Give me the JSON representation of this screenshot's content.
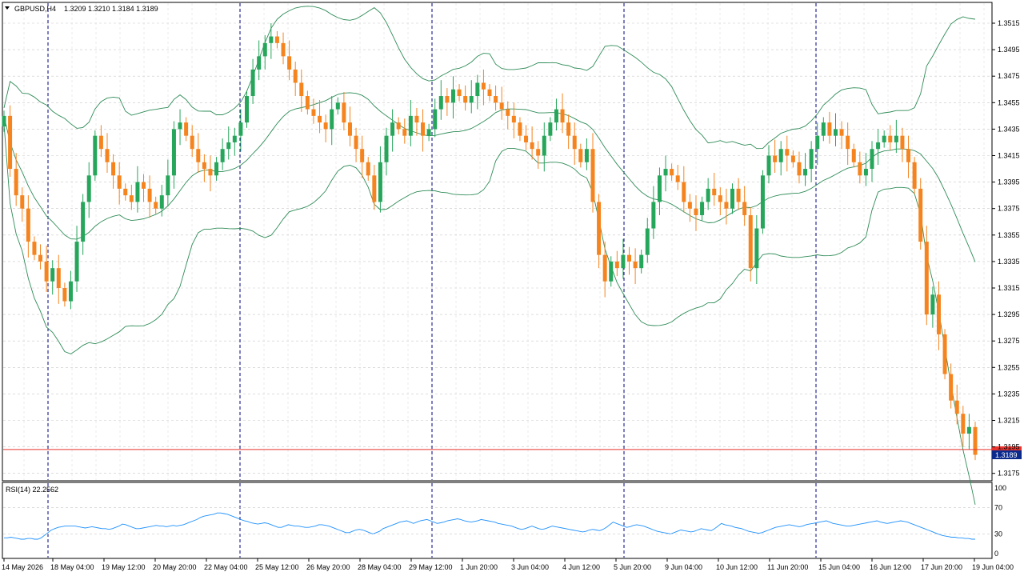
{
  "header": {
    "symbol_label": "GBPUSD,H4",
    "ohlc_label": "1.3209 1.3210 1.3184 1.3189"
  },
  "price_axis": {
    "labels": [
      "1.3515",
      "1.3495",
      "1.3475",
      "1.3455",
      "1.3435",
      "1.3415",
      "1.3395",
      "1.3375",
      "1.3355",
      "1.3335",
      "1.3315",
      "1.3295",
      "1.3275",
      "1.3255",
      "1.3235",
      "1.3215",
      "1.3195",
      "1.3175"
    ]
  },
  "current_price": {
    "label": "1.3189",
    "value": 1.3189,
    "bid_line_value": 1.3193
  },
  "rsi": {
    "label": "RSI(14) 22.2562",
    "levels": [
      "100",
      "70",
      "30",
      "0"
    ],
    "values": [
      24,
      24,
      25,
      24,
      23,
      22,
      22,
      23,
      23,
      22,
      22,
      24,
      28,
      32,
      36,
      38,
      40,
      41,
      42,
      42,
      42,
      42,
      41,
      40,
      39,
      40,
      41,
      40,
      39,
      38,
      38,
      37,
      38,
      40,
      42,
      45,
      44,
      42,
      40,
      38,
      38,
      39,
      40,
      41,
      42,
      43,
      42,
      42,
      41,
      42,
      43,
      42,
      43,
      44,
      46,
      48,
      50,
      52,
      55,
      57,
      58,
      59,
      60,
      62,
      62,
      61,
      60,
      58,
      56,
      54,
      52,
      50,
      49,
      47,
      46,
      45,
      46,
      47,
      46,
      44,
      42,
      40,
      40,
      42,
      44,
      43,
      42,
      42,
      41,
      40,
      40,
      41,
      42,
      44,
      44,
      43,
      42,
      40,
      38,
      36,
      34,
      32,
      32,
      34,
      36,
      37,
      36,
      34,
      32,
      30,
      32,
      34,
      38,
      40,
      42,
      44,
      46,
      48,
      49,
      50,
      48,
      46,
      48,
      50,
      51,
      52,
      50,
      48,
      46,
      47,
      48,
      50,
      51,
      52,
      53,
      52,
      50,
      49,
      48,
      49,
      50,
      52,
      51,
      50,
      49,
      48,
      46,
      45,
      44,
      43,
      42,
      40,
      38,
      37,
      38,
      40,
      42,
      40,
      38,
      37,
      38,
      40,
      42,
      41,
      40,
      39,
      38,
      37,
      36,
      35,
      34,
      33,
      34,
      36,
      37,
      36,
      35,
      37,
      40,
      44,
      48,
      46,
      44,
      42,
      40,
      41,
      43,
      44,
      43,
      42,
      40,
      38,
      36,
      34,
      33,
      32,
      31,
      30,
      32,
      34,
      36,
      35,
      34,
      33,
      34,
      36,
      38,
      37,
      36,
      35,
      38,
      42,
      46,
      44,
      43,
      42,
      40,
      39,
      38,
      36,
      34,
      33,
      32,
      31,
      32,
      34,
      36,
      38,
      40,
      41,
      42,
      43,
      44,
      43,
      42,
      41,
      42,
      44,
      45,
      46,
      47,
      48,
      49,
      50,
      48,
      46,
      45,
      44,
      43,
      42,
      42,
      43,
      44,
      45,
      46,
      47,
      48,
      49,
      50,
      48,
      47,
      46,
      47,
      48,
      49,
      50,
      49,
      48,
      46,
      44,
      42,
      40,
      38,
      36,
      34,
      32,
      30,
      28,
      27,
      26,
      25,
      25,
      24,
      24,
      23,
      23,
      22,
      22
    ]
  },
  "time_axis": {
    "labels": [
      "14 May 2026",
      "18 May 04:00",
      "19 May 12:00",
      "20 May 20:00",
      "22 May 04:00",
      "25 May 12:00",
      "26 May 20:00",
      "28 May 04:00",
      "29 May 12:00",
      "1 Jun 20:00",
      "3 Jun 04:00",
      "4 Jun 12:00",
      "5 Jun 20:00",
      "9 Jun 04:00",
      "10 Jun 12:00",
      "11 Jun 20:00",
      "15 Jun 04:00",
      "16 Jun 12:00",
      "17 Jun 20:00",
      "19 Jun 04:00"
    ]
  },
  "colors": {
    "bull": "#26a65b",
    "bear": "#f5841f",
    "bands": "#2e8b57",
    "rsi": "#1e90ff",
    "bid_line": "#e8342f",
    "price_tag": "#0b2a8c",
    "separator": "#000080"
  },
  "chart_data": {
    "type": "candlestick",
    "symbol": "GBPUSD",
    "timeframe": "H4",
    "ylim": [
      1.3165,
      1.3525
    ],
    "closes": [
      1.3445,
      1.3405,
      1.3385,
      1.3375,
      1.335,
      1.334,
      1.3335,
      1.332,
      1.333,
      1.3315,
      1.3305,
      1.332,
      1.335,
      1.338,
      1.34,
      1.343,
      1.342,
      1.341,
      1.34,
      1.339,
      1.3385,
      1.338,
      1.3395,
      1.339,
      1.338,
      1.3375,
      1.3385,
      1.34,
      1.3435,
      1.344,
      1.343,
      1.342,
      1.341,
      1.3405,
      1.34,
      1.341,
      1.342,
      1.3425,
      1.343,
      1.344,
      1.346,
      1.348,
      1.349,
      1.35,
      1.3505,
      1.35,
      1.349,
      1.348,
      1.347,
      1.346,
      1.345,
      1.3445,
      1.344,
      1.3435,
      1.345,
      1.3455,
      1.344,
      1.343,
      1.342,
      1.341,
      1.34,
      1.338,
      1.341,
      1.343,
      1.344,
      1.3435,
      1.343,
      1.3445,
      1.344,
      1.343,
      1.3435,
      1.345,
      1.346,
      1.3455,
      1.3465,
      1.346,
      1.3455,
      1.346,
      1.347,
      1.3465,
      1.346,
      1.3455,
      1.345,
      1.3445,
      1.344,
      1.343,
      1.3425,
      1.342,
      1.3415,
      1.343,
      1.344,
      1.345,
      1.344,
      1.343,
      1.342,
      1.341,
      1.342,
      1.338,
      1.334,
      1.332,
      1.3335,
      1.333,
      1.334,
      1.3335,
      1.333,
      1.334,
      1.336,
      1.338,
      1.34,
      1.3405,
      1.34,
      1.3395,
      1.338,
      1.3375,
      1.337,
      1.338,
      1.339,
      1.3385,
      1.338,
      1.3375,
      1.339,
      1.338,
      1.337,
      1.333,
      1.336,
      1.34,
      1.3415,
      1.341,
      1.342,
      1.3415,
      1.341,
      1.34,
      1.3405,
      1.342,
      1.343,
      1.344,
      1.343,
      1.3435,
      1.343,
      1.342,
      1.341,
      1.34,
      1.3405,
      1.342,
      1.3425,
      1.343,
      1.3425,
      1.343,
      1.342,
      1.341,
      1.339,
      1.335,
      1.3295,
      1.331,
      1.328,
      1.325,
      1.323,
      1.322,
      1.3205,
      1.321,
      1.3189
    ]
  }
}
